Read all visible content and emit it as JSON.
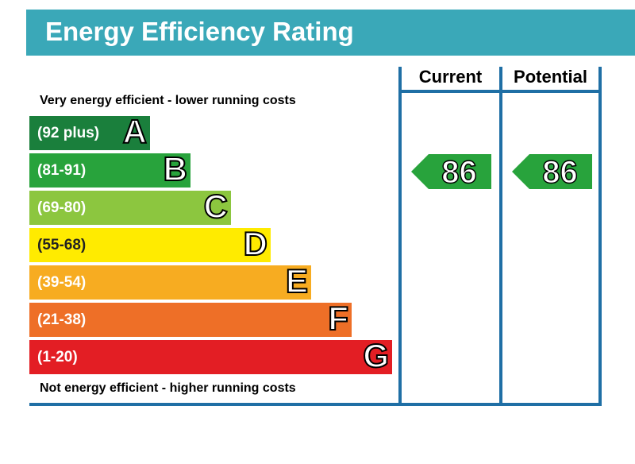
{
  "title": "Energy Efficiency Rating",
  "top_note": "Very energy efficient - lower running costs",
  "bottom_note": "Not energy efficient - higher running costs",
  "columns": {
    "current": "Current",
    "potential": "Potential"
  },
  "chart_data": {
    "type": "bar",
    "title": "Energy Efficiency Rating",
    "bands": [
      {
        "letter": "A",
        "range": "(92 plus)",
        "min": 92,
        "max": null,
        "color": "#1a7f3c"
      },
      {
        "letter": "B",
        "range": "(81-91)",
        "min": 81,
        "max": 91,
        "color": "#28a33c"
      },
      {
        "letter": "C",
        "range": "(69-80)",
        "min": 69,
        "max": 80,
        "color": "#8cc63f"
      },
      {
        "letter": "D",
        "range": "(55-68)",
        "min": 55,
        "max": 68,
        "color": "#ffeb00"
      },
      {
        "letter": "E",
        "range": "(39-54)",
        "min": 39,
        "max": 54,
        "color": "#f7ac21"
      },
      {
        "letter": "F",
        "range": "(21-38)",
        "min": 21,
        "max": 38,
        "color": "#ee6f27"
      },
      {
        "letter": "G",
        "range": "(1-20)",
        "min": 1,
        "max": 20,
        "color": "#e31e24"
      }
    ],
    "ratings": {
      "current": {
        "value": "86",
        "band": "B",
        "color": "#28a33c"
      },
      "potential": {
        "value": "86",
        "band": "B",
        "color": "#28a33c"
      }
    }
  },
  "colors": {
    "title_bar": "#3aa8b8",
    "frame": "#1f6fa5"
  }
}
